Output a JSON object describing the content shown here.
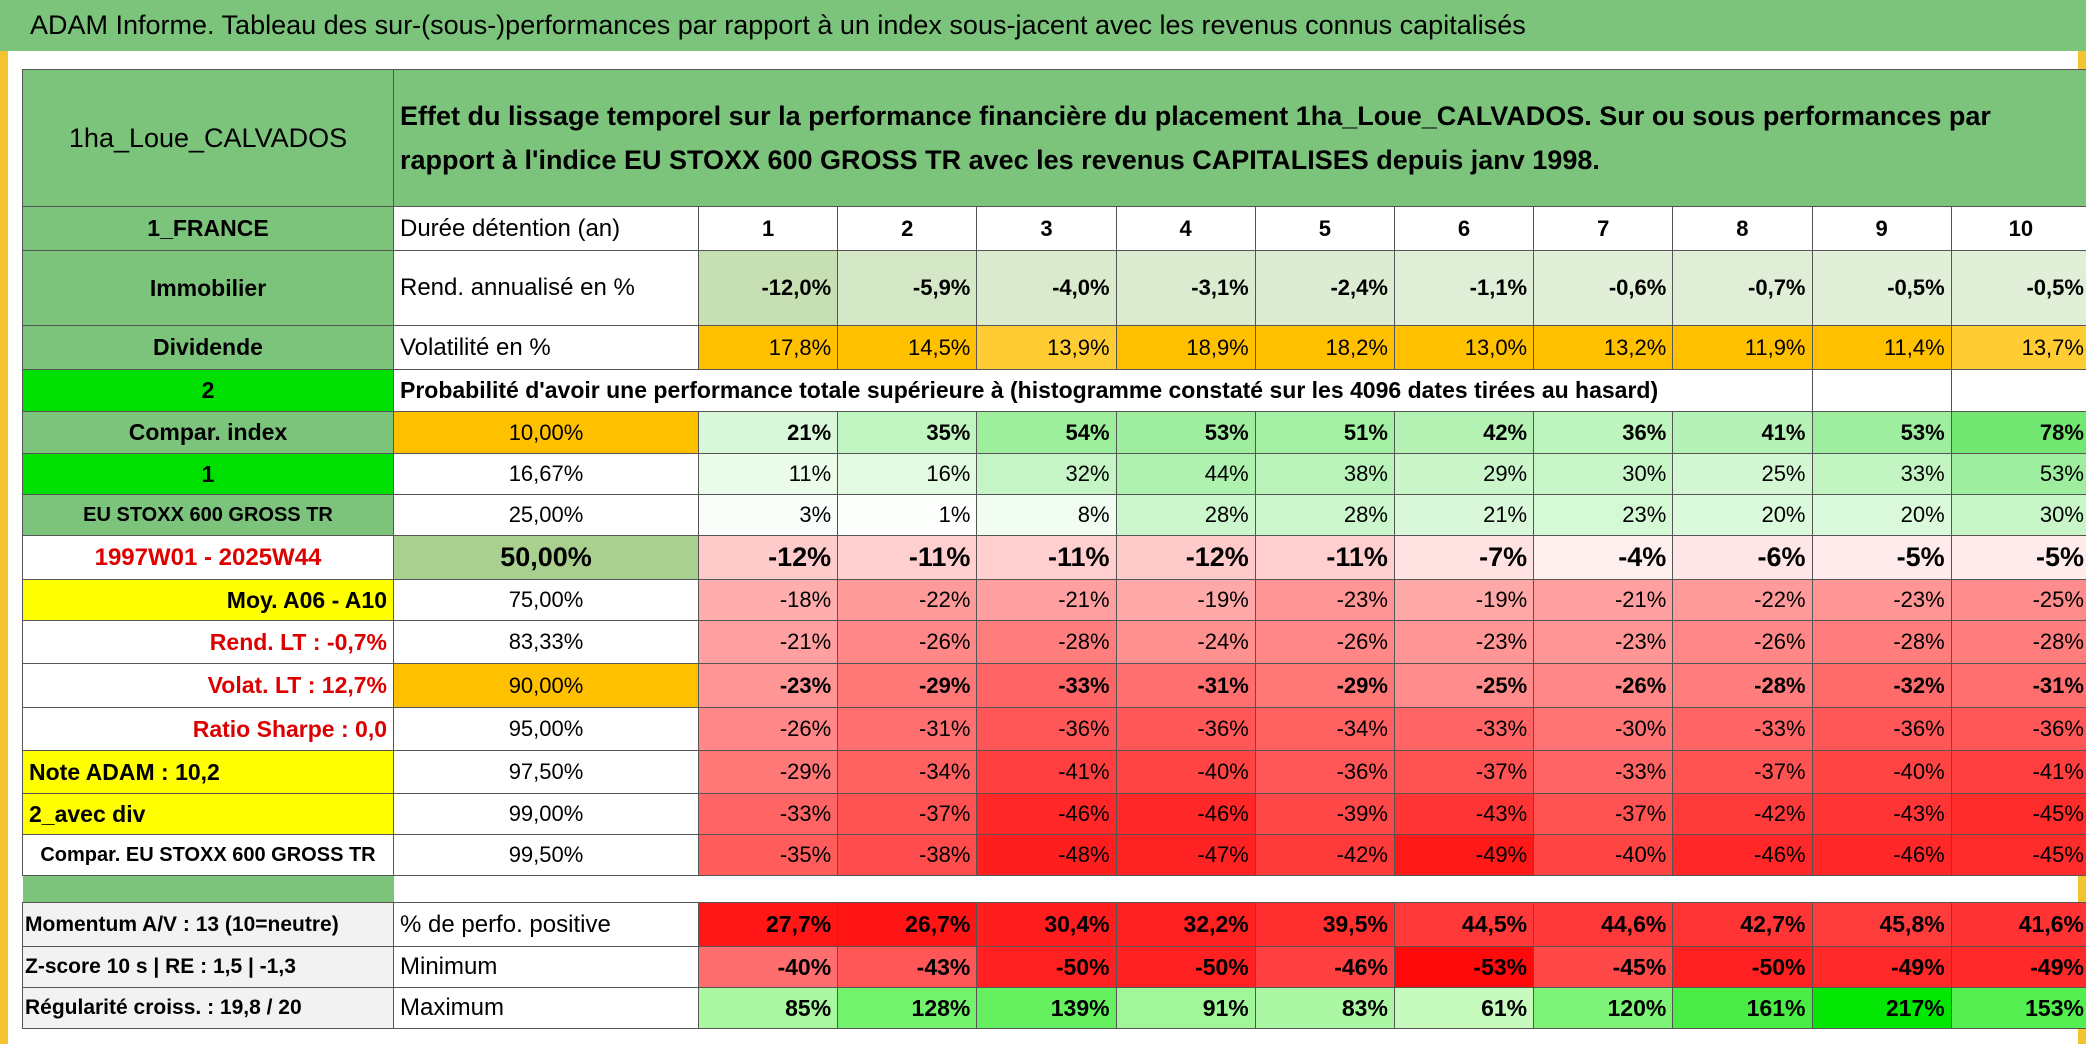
{
  "title": "ADAM Informe. Tableau des sur-(sous-)performances par rapport à un index sous-jacent avec les revenus connus capitalisés",
  "header": {
    "name": "1ha_Loue_CALVADOS",
    "description": "Effet du lissage temporel sur la performance financière du placement 1ha_Loue_CALVADOS. Sur ou sous performances par rapport à l'indice EU STOXX 600 GROSS TR avec les revenus CAPITALISES depuis janv 1998."
  },
  "table": {
    "rows": [
      [
        "1_FRANCE",
        "Durée détention (an)",
        "1",
        "2",
        "3",
        "4",
        "5",
        "6",
        "7",
        "8",
        "9",
        "10"
      ],
      [
        "Immobilier",
        "Rend. annualisé en %",
        "-12,0%",
        "-5,9%",
        "-4,0%",
        "-3,1%",
        "-2,4%",
        "-1,1%",
        "-0,6%",
        "-0,7%",
        "-0,5%",
        "-0,5%"
      ],
      [
        "Dividende",
        "Volatilité en %",
        "17,8%",
        "14,5%",
        "13,9%",
        "18,9%",
        "18,2%",
        "13,0%",
        "13,2%",
        "11,9%",
        "11,4%",
        "13,7%"
      ],
      [
        "2",
        "Probabilité d'avoir une performance totale supérieure à (histogramme constaté sur les 4096 dates tirées au hasard)"
      ],
      [
        "Compar. index",
        "10,00%",
        "21%",
        "35%",
        "54%",
        "53%",
        "51%",
        "42%",
        "36%",
        "41%",
        "53%",
        "78%"
      ],
      [
        "1",
        "16,67%",
        "11%",
        "16%",
        "32%",
        "44%",
        "38%",
        "29%",
        "30%",
        "25%",
        "33%",
        "53%"
      ],
      [
        "EU STOXX 600 GROSS TR",
        "25,00%",
        "3%",
        "1%",
        "8%",
        "28%",
        "28%",
        "21%",
        "23%",
        "20%",
        "20%",
        "30%"
      ],
      [
        "1997W01 - 2025W44",
        "50,00%",
        "-12%",
        "-11%",
        "-11%",
        "-12%",
        "-11%",
        "-7%",
        "-4%",
        "-6%",
        "-5%",
        "-5%"
      ],
      [
        "Moy. A06 - A10",
        "75,00%",
        "-18%",
        "-22%",
        "-21%",
        "-19%",
        "-23%",
        "-19%",
        "-21%",
        "-22%",
        "-23%",
        "-25%"
      ],
      [
        "Rend. LT :    -0,7%",
        "83,33%",
        "-21%",
        "-26%",
        "-28%",
        "-24%",
        "-26%",
        "-23%",
        "-23%",
        "-26%",
        "-28%",
        "-28%"
      ],
      [
        "Volat. LT :    12,7%",
        "90,00%",
        "-23%",
        "-29%",
        "-33%",
        "-31%",
        "-29%",
        "-25%",
        "-26%",
        "-28%",
        "-32%",
        "-31%"
      ],
      [
        "Ratio Sharpe :    0,0",
        "95,00%",
        "-26%",
        "-31%",
        "-36%",
        "-36%",
        "-34%",
        "-33%",
        "-30%",
        "-33%",
        "-36%",
        "-36%"
      ],
      [
        "Note ADAM : 10,2",
        "97,50%",
        "-29%",
        "-34%",
        "-41%",
        "-40%",
        "-36%",
        "-37%",
        "-33%",
        "-37%",
        "-40%",
        "-41%"
      ],
      [
        "2_avec div",
        "99,00%",
        "-33%",
        "-37%",
        "-46%",
        "-46%",
        "-39%",
        "-43%",
        "-37%",
        "-42%",
        "-43%",
        "-45%"
      ],
      [
        "Compar. EU STOXX 600 GROSS TR",
        "99,50%",
        "-35%",
        "-38%",
        "-48%",
        "-47%",
        "-42%",
        "-49%",
        "-40%",
        "-46%",
        "-46%",
        "-45%"
      ]
    ]
  },
  "footer": {
    "rows": [
      [
        "Momentum A/V : 13 (10=neutre)",
        "% de perfo. positive",
        "27,7%",
        "26,7%",
        "30,4%",
        "32,2%",
        "39,5%",
        "44,5%",
        "44,6%",
        "42,7%",
        "45,8%",
        "41,6%"
      ],
      [
        "Z-score 10 s | RE : 1,5 | -1,3",
        "Minimum",
        "-40%",
        "-43%",
        "-50%",
        "-50%",
        "-46%",
        "-53%",
        "-45%",
        "-50%",
        "-49%",
        "-49%"
      ],
      [
        "Régularité croiss. : 19,8 / 20",
        "Maximum",
        "85%",
        "128%",
        "139%",
        "91%",
        "83%",
        "61%",
        "120%",
        "161%",
        "217%",
        "153%"
      ]
    ]
  }
}
